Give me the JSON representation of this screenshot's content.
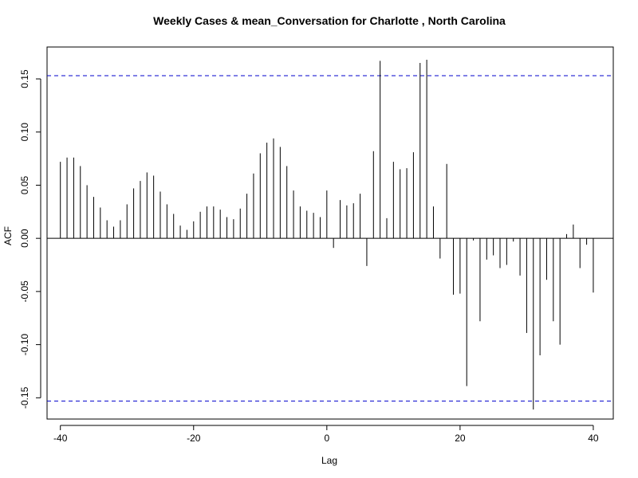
{
  "chart_data": {
    "type": "bar",
    "subtype": "acf-stem",
    "title": "Weekly Cases & mean_Conversation for Charlotte , North Carolina",
    "xlabel": "Lag",
    "ylabel": "ACF",
    "xlim": [
      -42,
      43
    ],
    "ylim": [
      -0.17,
      0.18
    ],
    "x_ticks": [
      -40,
      -20,
      0,
      20,
      40
    ],
    "x_tick_labels": [
      "-40",
      "-20",
      "0",
      "20",
      "40"
    ],
    "y_ticks": [
      -0.15,
      -0.1,
      -0.05,
      0.0,
      0.05,
      0.1,
      0.15
    ],
    "y_tick_labels": [
      "-0.15",
      "-0.10",
      "-0.05",
      "0.00",
      "0.05",
      "0.10",
      "0.15"
    ],
    "confidence_bound": 0.153,
    "confidence_color": "#0000cc",
    "lags": [
      -40,
      -39,
      -38,
      -37,
      -36,
      -35,
      -34,
      -33,
      -32,
      -31,
      -30,
      -29,
      -28,
      -27,
      -26,
      -25,
      -24,
      -23,
      -22,
      -21,
      -20,
      -19,
      -18,
      -17,
      -16,
      -15,
      -14,
      -13,
      -12,
      -11,
      -10,
      -9,
      -8,
      -7,
      -6,
      -5,
      -4,
      -3,
      -2,
      -1,
      0,
      1,
      2,
      3,
      4,
      5,
      6,
      7,
      8,
      9,
      10,
      11,
      12,
      13,
      14,
      15,
      16,
      17,
      18,
      19,
      20,
      21,
      22,
      23,
      24,
      25,
      26,
      27,
      28,
      29,
      30,
      31,
      32,
      33,
      34,
      35,
      36,
      37,
      38,
      39,
      40
    ],
    "values": [
      0.072,
      0.076,
      0.076,
      0.068,
      0.05,
      0.039,
      0.029,
      0.017,
      0.011,
      0.017,
      0.032,
      0.047,
      0.054,
      0.062,
      0.059,
      0.044,
      0.032,
      0.023,
      0.012,
      0.008,
      0.016,
      0.025,
      0.03,
      0.03,
      0.027,
      0.02,
      0.018,
      0.028,
      0.042,
      0.061,
      0.08,
      0.09,
      0.094,
      0.086,
      0.068,
      0.045,
      0.03,
      0.026,
      0.024,
      0.02,
      0.045,
      -0.009,
      0.036,
      0.031,
      0.033,
      0.042,
      -0.026,
      0.082,
      0.167,
      0.019,
      0.072,
      0.065,
      0.066,
      0.081,
      0.165,
      0.168,
      0.03,
      -0.019,
      0.07,
      -0.053,
      -0.052,
      -0.139,
      -0.002,
      -0.078,
      -0.02,
      -0.016,
      -0.028,
      -0.025,
      -0.003,
      -0.035,
      -0.089,
      -0.161,
      -0.11,
      -0.039,
      -0.078,
      -0.1,
      0.004,
      0.013,
      -0.028,
      -0.006,
      -0.051
    ]
  }
}
